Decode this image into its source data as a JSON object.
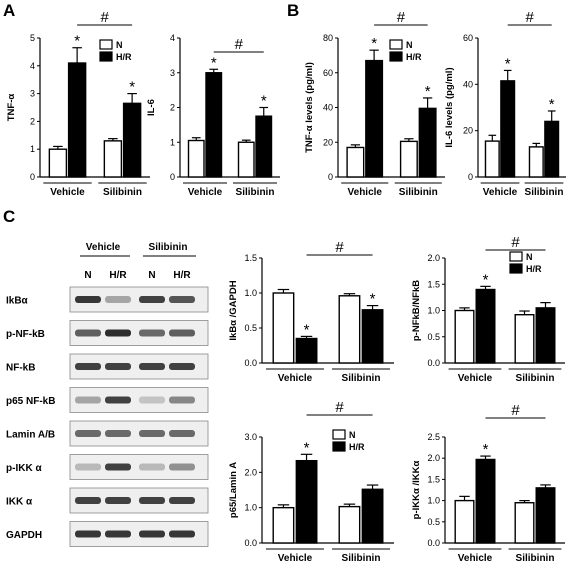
{
  "panel_letters": [
    "A",
    "B",
    "C"
  ],
  "legend": {
    "n": "N",
    "hr": "H/R"
  },
  "blot": {
    "groups": [
      "Vehicle",
      "Silibinin"
    ],
    "lanes": [
      "N",
      "H/R",
      "N",
      "H/R"
    ],
    "rows": [
      {
        "label": "IkBα",
        "intensity": [
          0.9,
          0.35,
          0.85,
          0.75
        ]
      },
      {
        "label": "p-NF-kB",
        "intensity": [
          0.7,
          0.95,
          0.65,
          0.7
        ]
      },
      {
        "label": "NF-kB",
        "intensity": [
          0.85,
          0.85,
          0.85,
          0.85
        ]
      },
      {
        "label": "p65 NF-kB",
        "intensity": [
          0.35,
          0.85,
          0.2,
          0.5
        ]
      },
      {
        "label": "Lamin A/B",
        "intensity": [
          0.65,
          0.65,
          0.65,
          0.65
        ]
      },
      {
        "label": "p-IKK α",
        "intensity": [
          0.25,
          0.85,
          0.25,
          0.45
        ]
      },
      {
        "label": "IKK α",
        "intensity": [
          0.85,
          0.85,
          0.85,
          0.85
        ]
      },
      {
        "label": "GAPDH",
        "intensity": [
          0.9,
          0.9,
          0.9,
          0.9
        ]
      }
    ]
  },
  "chart_data": [
    {
      "type": "bar",
      "panel": "A",
      "ylabel": "TNF-α",
      "ylim": [
        0,
        5
      ],
      "yticks": [
        0,
        1,
        2,
        3,
        4,
        5
      ],
      "groups": [
        "Vehicle",
        "Silibinin"
      ],
      "series": [
        {
          "name": "N",
          "values": [
            1.0,
            1.3
          ],
          "errors": [
            0.1,
            0.08
          ]
        },
        {
          "name": "H/R",
          "values": [
            4.1,
            2.65
          ],
          "errors": [
            0.55,
            0.35
          ]
        }
      ],
      "stars": [
        false,
        true,
        false,
        true
      ],
      "hash": "#"
    },
    {
      "type": "bar",
      "panel": "A",
      "ylabel": "IL-6",
      "ylim": [
        0,
        4
      ],
      "yticks": [
        0,
        1,
        2,
        3,
        4
      ],
      "groups": [
        "Vehicle",
        "Silibinin"
      ],
      "series": [
        {
          "name": "N",
          "values": [
            1.05,
            1.0
          ],
          "errors": [
            0.08,
            0.06
          ]
        },
        {
          "name": "H/R",
          "values": [
            3.0,
            1.75
          ],
          "errors": [
            0.1,
            0.25
          ]
        }
      ],
      "stars": [
        false,
        true,
        false,
        true
      ],
      "hash": "#"
    },
    {
      "type": "bar",
      "panel": "B",
      "ylabel": "TNF-α levels (pg/ml)",
      "ylim": [
        0,
        80
      ],
      "yticks": [
        0,
        20,
        40,
        60,
        80
      ],
      "groups": [
        "Vehicle",
        "Silibinin"
      ],
      "series": [
        {
          "name": "N",
          "values": [
            17,
            20.5
          ],
          "errors": [
            1.5,
            1.5
          ]
        },
        {
          "name": "H/R",
          "values": [
            67,
            39.5
          ],
          "errors": [
            6,
            6
          ]
        }
      ],
      "stars": [
        false,
        true,
        false,
        true
      ],
      "hash": "#"
    },
    {
      "type": "bar",
      "panel": "B",
      "ylabel": "IL-6 levels (pg/ml)",
      "ylim": [
        0,
        60
      ],
      "yticks": [
        0,
        20,
        40,
        60
      ],
      "groups": [
        "Vehicle",
        "Silibinin"
      ],
      "series": [
        {
          "name": "N",
          "values": [
            15.5,
            13
          ],
          "errors": [
            2.5,
            1.5
          ]
        },
        {
          "name": "H/R",
          "values": [
            41.5,
            24
          ],
          "errors": [
            4.5,
            4.5
          ]
        }
      ],
      "stars": [
        false,
        true,
        false,
        true
      ],
      "hash": "#"
    },
    {
      "type": "bar",
      "panel": "C",
      "ylabel": "IkBα /GAPDH",
      "ylim": [
        0,
        1.5
      ],
      "yticks": [
        "0.0",
        "0.5",
        "1.0",
        "1.5"
      ],
      "groups": [
        "Vehicle",
        "Silibinin"
      ],
      "series": [
        {
          "name": "N",
          "values": [
            1.0,
            0.96
          ],
          "errors": [
            0.05,
            0.03
          ]
        },
        {
          "name": "H/R",
          "values": [
            0.35,
            0.76
          ],
          "errors": [
            0.03,
            0.06
          ]
        }
      ],
      "stars": [
        false,
        true,
        false,
        true
      ],
      "hash": "#"
    },
    {
      "type": "bar",
      "panel": "C",
      "ylabel": "p-NFkB/NFkB",
      "ylim": [
        0,
        2.0
      ],
      "yticks": [
        "0.0",
        "0.5",
        "1.0",
        "1.5",
        "2.0"
      ],
      "groups": [
        "Vehicle",
        "Silibinin"
      ],
      "series": [
        {
          "name": "N",
          "values": [
            1.0,
            0.92
          ],
          "errors": [
            0.05,
            0.07
          ]
        },
        {
          "name": "H/R",
          "values": [
            1.4,
            1.05
          ],
          "errors": [
            0.06,
            0.1
          ]
        }
      ],
      "stars": [
        false,
        true,
        false,
        false
      ],
      "hash": "#"
    },
    {
      "type": "bar",
      "panel": "C",
      "ylabel": "p65/Lamin A",
      "ylim": [
        0,
        3.0
      ],
      "yticks": [
        "0.0",
        "1.0",
        "2.0",
        "3.0"
      ],
      "groups": [
        "Vehicle",
        "Silibinin"
      ],
      "series": [
        {
          "name": "N",
          "values": [
            1.0,
            1.03
          ],
          "errors": [
            0.08,
            0.07
          ]
        },
        {
          "name": "H/R",
          "values": [
            2.33,
            1.52
          ],
          "errors": [
            0.18,
            0.12
          ]
        }
      ],
      "stars": [
        false,
        true,
        false,
        false
      ],
      "hash": "#"
    },
    {
      "type": "bar",
      "panel": "C",
      "ylabel": "p-IKKα /IKKα",
      "ylim": [
        0,
        2.5
      ],
      "yticks": [
        "0.0",
        "0.5",
        "1.0",
        "1.5",
        "2.0",
        "2.5"
      ],
      "groups": [
        "Vehicle",
        "Silibinin"
      ],
      "series": [
        {
          "name": "N",
          "values": [
            1.0,
            0.95
          ],
          "errors": [
            0.1,
            0.05
          ]
        },
        {
          "name": "H/R",
          "values": [
            1.97,
            1.3
          ],
          "errors": [
            0.08,
            0.07
          ]
        }
      ],
      "stars": [
        false,
        true,
        false,
        false
      ],
      "hash": "#"
    }
  ]
}
